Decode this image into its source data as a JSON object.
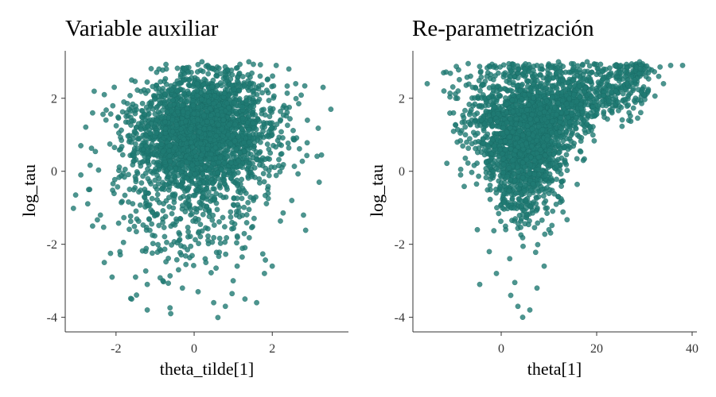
{
  "colors": {
    "point_fill": "#1f7a73",
    "point_stroke": "#176660",
    "axis": "#333333"
  },
  "chart_data": [
    {
      "type": "scatter",
      "title": "Variable auxiliar",
      "xlabel": "theta_tilde[1]",
      "ylabel": "log_tau",
      "xlim": [
        -3.3,
        3.95
      ],
      "ylim": [
        -4.4,
        3.3
      ],
      "xticks": [
        -2,
        0,
        2
      ],
      "yticks": [
        -4,
        -2,
        0,
        2
      ],
      "grid": false,
      "legend": "none",
      "points": [
        [
          -2.9,
          -0.1
        ],
        [
          -2.6,
          -1.5
        ],
        [
          -2.6,
          1.6
        ],
        [
          -2.3,
          -2.5
        ],
        [
          -2.1,
          -2.9
        ],
        [
          -1.9,
          -2.2
        ],
        [
          -1.6,
          -3.5
        ],
        [
          -1.5,
          -2.9
        ],
        [
          -1.2,
          -3.8
        ],
        [
          -1.2,
          -3.1
        ],
        [
          -0.8,
          -3.0
        ],
        [
          -0.6,
          -3.9
        ],
        [
          -0.3,
          -3.2
        ],
        [
          0.1,
          -3.3
        ],
        [
          0.5,
          -3.6
        ],
        [
          0.8,
          -3.7
        ],
        [
          1.0,
          -3.0
        ],
        [
          1.3,
          -3.5
        ],
        [
          1.6,
          -3.6
        ],
        [
          1.8,
          -2.8
        ],
        [
          2.0,
          -2.6
        ],
        [
          -0.4,
          -2.7
        ],
        [
          0.3,
          -2.5
        ],
        [
          1.1,
          -2.6
        ],
        [
          -2.4,
          -1.2
        ],
        [
          2.5,
          -0.8
        ],
        [
          2.8,
          -1.2
        ],
        [
          3.2,
          -0.3
        ],
        [
          3.5,
          1.7
        ],
        [
          3.3,
          2.3
        ],
        [
          2.9,
          1.4
        ],
        [
          -2.9,
          0.7
        ],
        [
          -2.7,
          -0.5
        ],
        [
          2.6,
          2.4
        ],
        [
          2.1,
          2.9
        ],
        [
          1.4,
          3.0
        ],
        [
          0.2,
          3.0
        ],
        [
          -0.9,
          2.8
        ],
        [
          -1.6,
          2.5
        ],
        [
          -2.3,
          2.1
        ],
        [
          -1.8,
          1.9
        ],
        [
          2.3,
          1.8
        ]
      ],
      "clouds": [
        {
          "n": 2300,
          "cx": 0.2,
          "cy": 1.2,
          "sx": 0.85,
          "sy": 0.75,
          "rho": 0.1
        },
        {
          "n": 450,
          "cx": 0.0,
          "cy": 0.3,
          "sx": 1.1,
          "sy": 1.0,
          "rho": 0.0
        },
        {
          "n": 220,
          "cx": -0.3,
          "cy": -1.2,
          "sx": 1.0,
          "sy": 0.9,
          "rho": 0.0
        }
      ]
    },
    {
      "type": "scatter",
      "title": "Re-parametrización",
      "xlabel": "theta[1]",
      "ylabel": "log_tau",
      "xlim": [
        -18.5,
        41
      ],
      "ylim": [
        -4.4,
        3.3
      ],
      "xticks": [
        0,
        20,
        40
      ],
      "yticks": [
        -4,
        -2,
        0,
        2
      ],
      "grid": false,
      "legend": "none",
      "points": [
        [
          -15.5,
          2.4
        ],
        [
          -12.0,
          2.2
        ],
        [
          -10.0,
          1.6
        ],
        [
          -8.5,
          -0.1
        ],
        [
          -7.5,
          1.0
        ],
        [
          -5.0,
          -1.6
        ],
        [
          -4.5,
          -3.1
        ],
        [
          -2.5,
          -2.2
        ],
        [
          -1.0,
          -2.8
        ],
        [
          2.0,
          -3.4
        ],
        [
          3.5,
          -3.7
        ],
        [
          4.5,
          -4.0
        ],
        [
          6.0,
          -3.8
        ],
        [
          7.5,
          -3.2
        ],
        [
          9.0,
          -2.6
        ],
        [
          10.0,
          -1.6
        ],
        [
          12.0,
          -0.7
        ],
        [
          14.0,
          0.6
        ],
        [
          15.5,
          1.3
        ],
        [
          19.0,
          1.5
        ],
        [
          22.0,
          1.8
        ],
        [
          24.0,
          2.2
        ],
        [
          26.0,
          2.6
        ],
        [
          28.0,
          2.5
        ],
        [
          30.0,
          2.1
        ],
        [
          31.0,
          2.8
        ],
        [
          33.0,
          2.6
        ],
        [
          34.0,
          2.4
        ],
        [
          38.0,
          2.9
        ],
        [
          35.5,
          2.9
        ],
        [
          29.0,
          3.0
        ],
        [
          25.0,
          2.9
        ],
        [
          18.0,
          3.0
        ],
        [
          12.0,
          3.0
        ],
        [
          5.0,
          2.8
        ],
        [
          -3.0,
          2.6
        ],
        [
          -6.0,
          2.3
        ],
        [
          -9.5,
          2.0
        ]
      ],
      "clouds": [
        {
          "n": 2000,
          "shape": "funnel",
          "cx": 4.5,
          "cy": 1.0
        },
        {
          "n": 700,
          "shape": "wing"
        }
      ]
    }
  ]
}
